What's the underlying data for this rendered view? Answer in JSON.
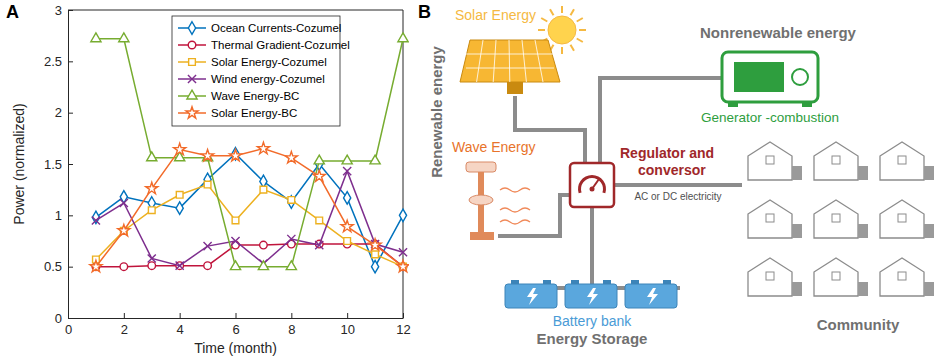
{
  "panel_labels": [
    "A",
    "B"
  ],
  "chart_data": {
    "type": "line",
    "x_label": "Time (month)",
    "y_label": "Power (normalized)",
    "x": [
      1,
      2,
      3,
      4,
      5,
      6,
      7,
      8,
      9,
      10,
      11,
      12
    ],
    "xlim": [
      0,
      12
    ],
    "xticks": [
      0,
      2,
      4,
      6,
      8,
      10,
      12
    ],
    "ylim": [
      0,
      3
    ],
    "yticks": [
      0,
      0.5,
      1,
      1.5,
      2,
      2.5,
      3
    ],
    "grid": false,
    "legend": "northeast",
    "series": [
      {
        "name": "Ocean Currents-Cozumel",
        "color": "#0072bd",
        "marker": "diamond",
        "values": [
          0.98,
          1.18,
          1.12,
          1.07,
          1.35,
          1.6,
          1.33,
          1.13,
          1.5,
          1.17,
          0.5,
          1.0
        ]
      },
      {
        "name": "Thermal Gradient-Cozumel",
        "color": "#c0143c",
        "marker": "circle",
        "values": [
          0.5,
          0.5,
          0.51,
          0.51,
          0.51,
          0.71,
          0.71,
          0.72,
          0.72,
          0.72,
          0.72,
          0.5
        ]
      },
      {
        "name": "Solar Energy-Cozumel",
        "color": "#edb120",
        "marker": "square",
        "values": [
          0.57,
          0.85,
          1.05,
          1.2,
          1.3,
          0.95,
          1.25,
          1.15,
          0.95,
          0.75,
          0.62,
          0.5
        ]
      },
      {
        "name": "Wind energy-Cozumel",
        "color": "#7e2f8e",
        "marker": "x",
        "values": [
          0.95,
          1.12,
          0.58,
          0.51,
          0.7,
          0.75,
          0.53,
          0.77,
          0.71,
          1.43,
          0.72,
          0.64
        ]
      },
      {
        "name": "Wave Energy-BC",
        "color": "#77ac30",
        "marker": "triangle",
        "values": [
          2.72,
          2.72,
          1.56,
          1.56,
          1.56,
          0.5,
          0.5,
          0.5,
          1.53,
          1.53,
          1.53,
          2.72
        ]
      },
      {
        "name": "Solar Energy-BC",
        "color": "#f26b2a",
        "marker": "star",
        "values": [
          0.5,
          0.85,
          1.26,
          1.64,
          1.58,
          1.58,
          1.65,
          1.56,
          1.38,
          0.89,
          0.71,
          0.5
        ]
      }
    ]
  },
  "diagram": {
    "group_labels": [
      "Renewable energy",
      "Nonrenewable energy"
    ],
    "nodes": [
      {
        "label": "Solar Energy"
      },
      {
        "label": "Generator -combustion"
      },
      {
        "label": "Wave Energy"
      },
      {
        "lines": [
          "Regulator and",
          "conversor"
        ]
      },
      {
        "lines": [
          "Battery bank",
          "Energy Storage"
        ]
      },
      {
        "label": "Community"
      }
    ],
    "edge_label": "AC or DC electricity"
  }
}
